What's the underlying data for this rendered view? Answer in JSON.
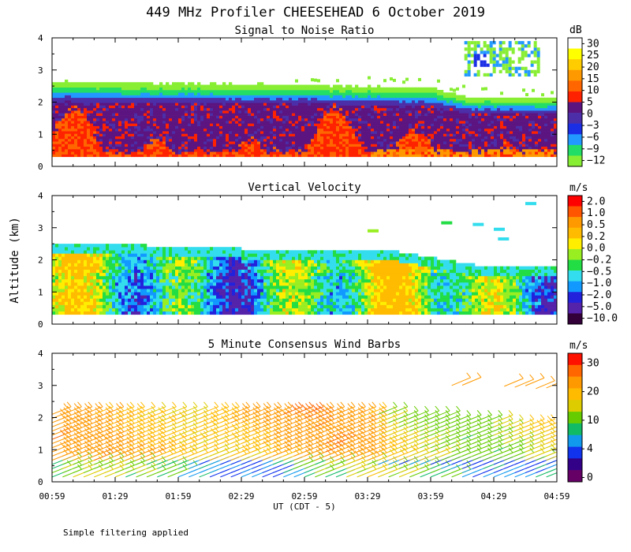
{
  "title": "449 MHz Profiler CHEESEHEAD  6 October 2019",
  "ylabel": "Altitude (km)",
  "xlabel": "UT (CDT - 5)",
  "footnote": "Simple filtering applied",
  "x_ticks": [
    "00:59",
    "01:29",
    "01:59",
    "02:29",
    "02:59",
    "03:29",
    "03:59",
    "04:29",
    "04:59"
  ],
  "y_ticks": [
    "0",
    "1",
    "2",
    "3",
    "4"
  ],
  "chart_data": [
    {
      "type": "heatmap",
      "title": "Signal to Noise Ratio",
      "xlabel": "UT (CDT - 5)",
      "ylabel": "Altitude (km)",
      "xlim": [
        0,
        240
      ],
      "ylim": [
        0,
        4
      ],
      "colorbar_unit": "dB",
      "colorbar_ticks": [
        "30",
        "25",
        "20",
        "15",
        "10",
        "5",
        "0",
        "−3",
        "−6",
        "−9",
        "−12"
      ],
      "colorbar_colors": [
        "#ffffff",
        "#ffff00",
        "#ffcc00",
        "#ff9900",
        "#ff6600",
        "#ff2200",
        "#5c1480",
        "#4b2ea8",
        "#1a2ee6",
        "#2299ff",
        "#22dd66",
        "#88ee33"
      ],
      "approx_top_km": [
        [
          0,
          2.6
        ],
        [
          60,
          2.55
        ],
        [
          120,
          2.5
        ],
        [
          180,
          2.4
        ],
        [
          200,
          2.1
        ],
        [
          240,
          2.1
        ]
      ],
      "isolated_echo": {
        "t_min": [
          196,
          232
        ],
        "alt_km": [
          2.8,
          3.9
        ]
      }
    },
    {
      "type": "heatmap",
      "title": "Vertical Velocity",
      "xlabel": "UT (CDT - 5)",
      "ylabel": "Altitude (km)",
      "xlim": [
        0,
        240
      ],
      "ylim": [
        0,
        4
      ],
      "colorbar_unit": "m/s",
      "colorbar_ticks": [
        "2.0",
        "1.0",
        "0.5",
        "0.2",
        "0.0",
        "−0.2",
        "−0.5",
        "−1.0",
        "−2.0",
        "−5.0",
        "−10.0"
      ],
      "colorbar_colors": [
        "#ff0000",
        "#ff5500",
        "#ff9900",
        "#ffbb00",
        "#ffee00",
        "#99ee22",
        "#22dd44",
        "#33ddee",
        "#1199ff",
        "#2222dd",
        "#5522aa",
        "#33003a"
      ],
      "approx_top_km": [
        [
          0,
          2.5
        ],
        [
          90,
          2.3
        ],
        [
          160,
          2.25
        ],
        [
          200,
          1.8
        ],
        [
          240,
          1.7
        ]
      ]
    },
    {
      "type": "wind_barbs",
      "title": "5 Minute Consensus Wind Barbs",
      "xlabel": "UT (CDT - 5)",
      "ylabel": "Altitude (km)",
      "xlim": [
        0,
        240
      ],
      "ylim": [
        0,
        4
      ],
      "interval_min": 5,
      "colorbar_unit": "m/s",
      "colorbar_ticks": [
        "30",
        "20",
        "10",
        "4",
        "0"
      ],
      "colorbar_colors": [
        "#ff1100",
        "#ff6600",
        "#ff9900",
        "#ffbb00",
        "#ddcc00",
        "#66cc00",
        "#11bb66",
        "#1199ee",
        "#1133ee",
        "#330088",
        "#660066"
      ],
      "approx_top_km": [
        [
          0,
          2.2
        ],
        [
          160,
          2.1
        ],
        [
          240,
          1.7
        ]
      ],
      "upper_layer": {
        "t_min": [
          190,
          236
        ],
        "alt_km": [
          2.9,
          3.1
        ],
        "speed_ms": 18
      }
    }
  ]
}
